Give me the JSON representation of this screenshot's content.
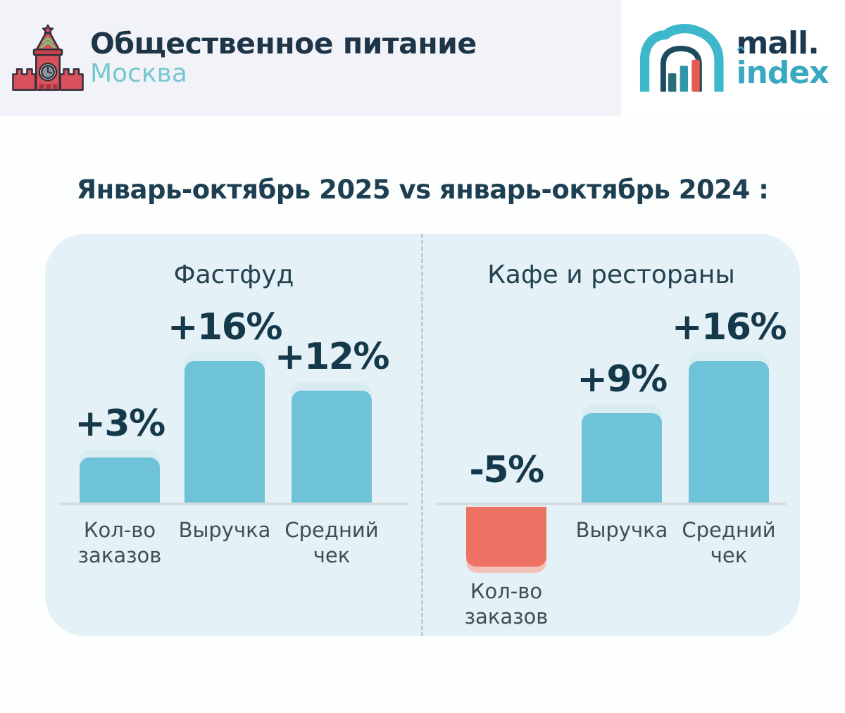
{
  "header": {
    "title": "Общественное питание",
    "subtitle": "Москва",
    "icon": "kremlin-tower-icon"
  },
  "brand": {
    "name_top": "mall",
    "dot": ".",
    "name_bottom": "index",
    "icon": "mall-arch-bars-icon",
    "colors": {
      "navy": "#1c3950",
      "teal": "#3aa9bf",
      "red": "#e8594f"
    }
  },
  "main_title": "Январь-октябрь 2025 vs январь-октябрь 2024 :",
  "chart_data": [
    {
      "type": "bar",
      "title": "Фастфуд",
      "categories": [
        "Кол-во заказов",
        "Выручка",
        "Средний чек"
      ],
      "values": [
        3,
        16,
        12
      ],
      "value_labels": [
        "+3%",
        "+16%",
        "+12%"
      ],
      "unit": "%",
      "baseline": "zero-change",
      "positive_color": "#6fc3d8",
      "positive_cap_color": "#d8ecf2",
      "negative_color": "#ee7264",
      "negative_cap_color": "#f4c0ba"
    },
    {
      "type": "bar",
      "title": "Кафе и рестораны",
      "categories": [
        "Кол-во заказов",
        "Выручка",
        "Средний чек"
      ],
      "values": [
        -5,
        9,
        16
      ],
      "value_labels": [
        "-5%",
        "+9%",
        "+16%"
      ],
      "unit": "%",
      "baseline": "zero-change",
      "positive_color": "#6fc3d8",
      "positive_cap_color": "#d8ecf2",
      "negative_color": "#ee7264",
      "negative_cap_color": "#f4c0ba"
    }
  ],
  "colors": {
    "header_bg": "#f1f3f8",
    "page_bg": "#fdfefe",
    "panel_bg": "#e4f1f7",
    "bar_teal": "#6fc3d8",
    "bar_red": "#ee7264",
    "text_dark": "#1c3a4c",
    "label_gray": "#3e4e57",
    "subtitle_teal": "#76c7cf",
    "baseline_gray": "#d6dbde"
  }
}
